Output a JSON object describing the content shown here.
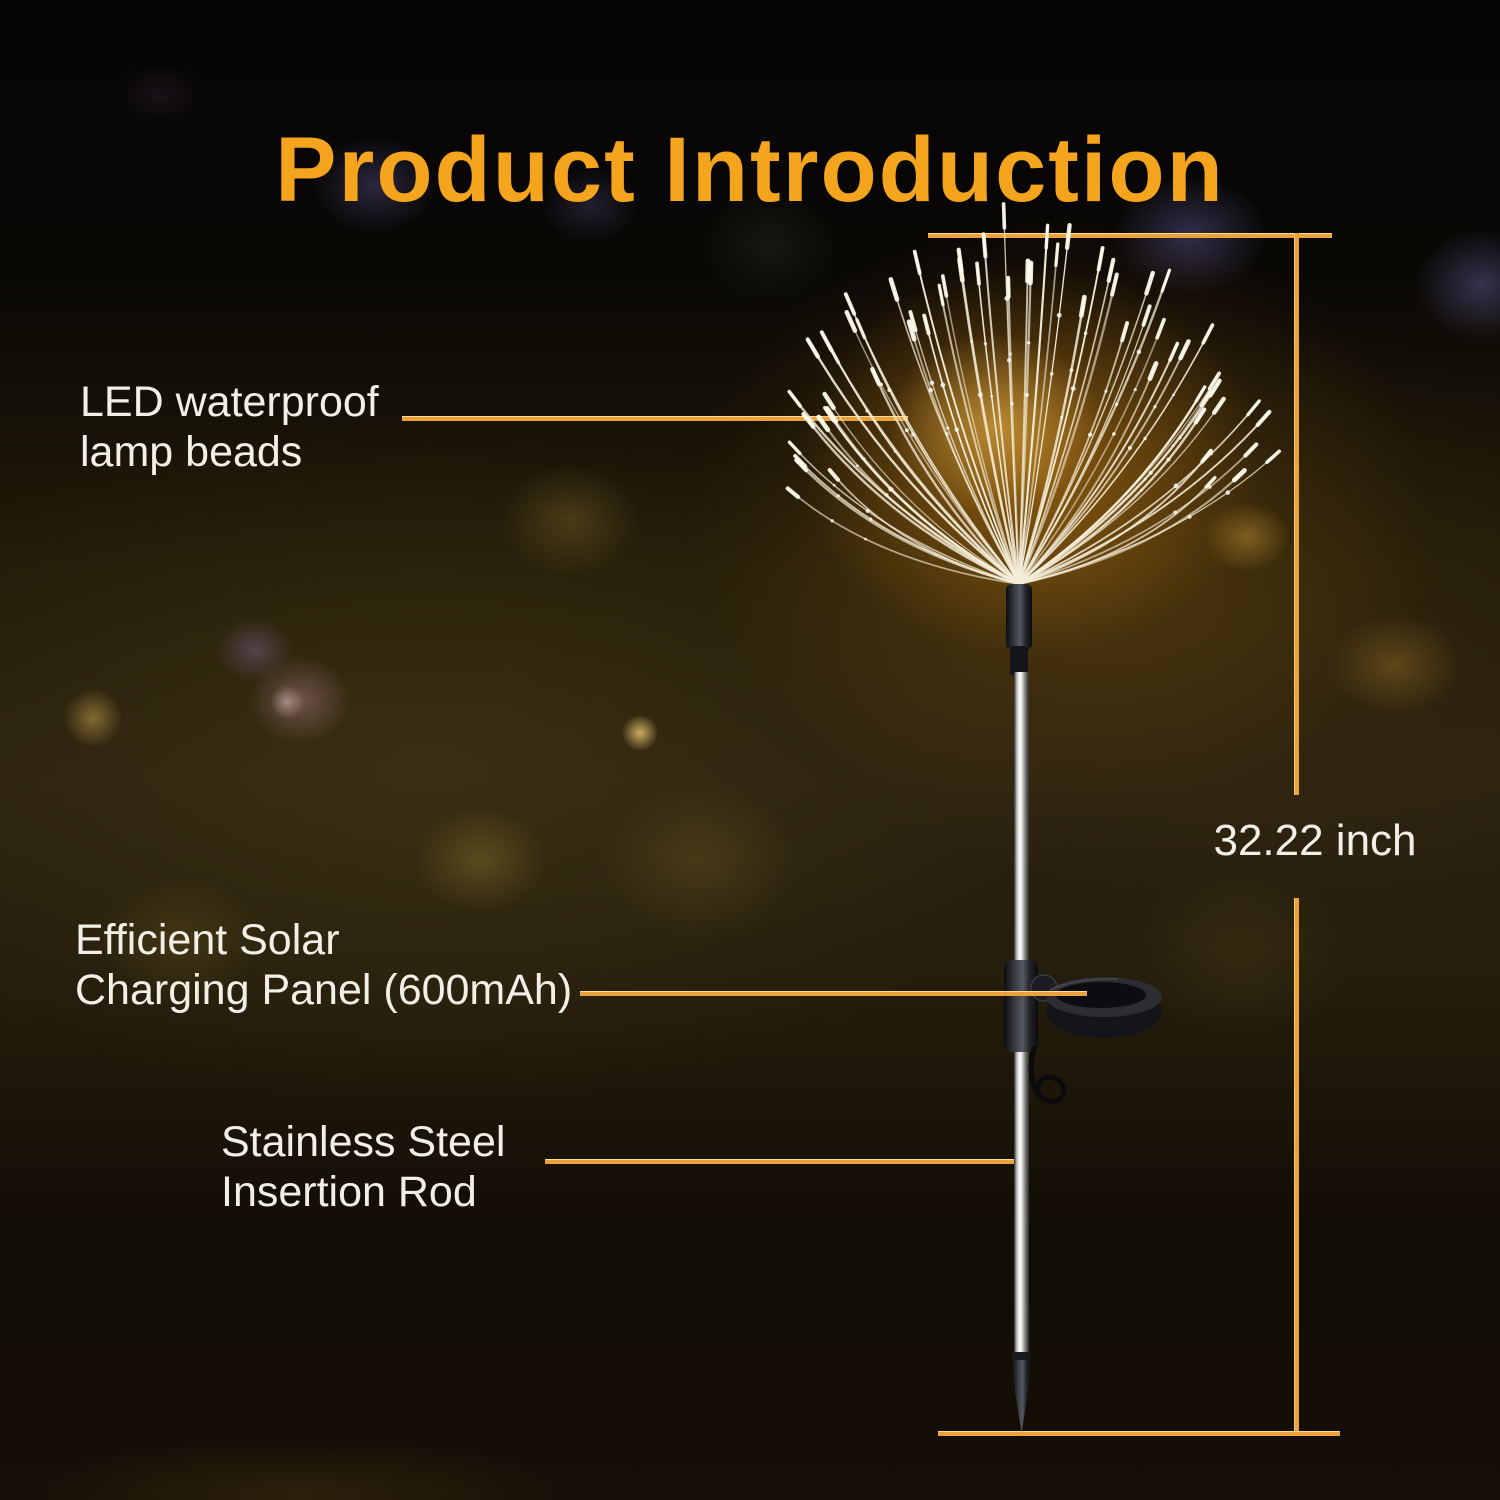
{
  "header": {
    "title": "Product Introduction"
  },
  "callouts": {
    "led": {
      "line1": "LED waterproof",
      "line2": "lamp beads"
    },
    "solar": {
      "line1": "Efficient Solar",
      "line2": "Charging Panel (600mAh)"
    },
    "rod": {
      "line1": "Stainless Steel",
      "line2": "Insertion Rod"
    }
  },
  "dimension": {
    "label": "32.22 inch"
  },
  "colors": {
    "accent_title": "#F5A41D",
    "callout_line": "#ECA23A",
    "label_text": "#F2EFE6"
  }
}
